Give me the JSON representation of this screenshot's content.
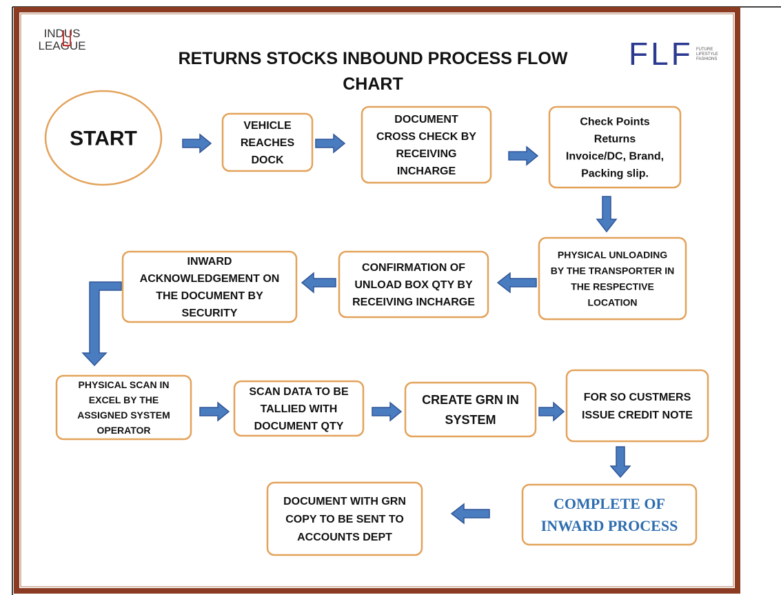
{
  "header": {
    "title_lines": [
      "RETURNS STOCKS INBOUND PROCESS FLOW",
      "CHART"
    ],
    "logo_left": [
      "INDUS",
      "LEAGUE"
    ],
    "logo_right": "FLF",
    "logo_right_small": [
      "FUTURE",
      "LIFESTYLE",
      "FASHIONS"
    ]
  },
  "nodes": [
    {
      "lines": [
        "START"
      ]
    },
    {
      "lines": [
        "VEHICLE",
        "REACHES",
        "DOCK"
      ]
    },
    {
      "lines": [
        "DOCUMENT",
        "CROSS CHECK BY",
        "RECEIVING",
        "INCHARGE"
      ]
    },
    {
      "lines": [
        "Check Points",
        "Returns",
        "Invoice/DC, Brand,",
        "Packing slip."
      ]
    },
    {
      "lines": [
        "PHYSICAL UNLOADING",
        "BY THE TRANSPORTER IN",
        "THE RESPECTIVE",
        "LOCATION"
      ]
    },
    {
      "lines": [
        "CONFIRMATION OF",
        "UNLOAD BOX QTY BY",
        "RECEIVING INCHARGE"
      ]
    },
    {
      "lines": [
        "INWARD",
        "ACKNOWLEDGEMENT ON",
        "THE DOCUMENT BY",
        "SECURITY"
      ]
    },
    {
      "lines": [
        "PHYSICAL SCAN IN",
        "EXCEL BY THE",
        "ASSIGNED SYSTEM",
        "OPERATOR"
      ]
    },
    {
      "lines": [
        "SCAN DATA TO BE",
        "TALLIED WITH",
        "DOCUMENT QTY"
      ]
    },
    {
      "lines": [
        "CREATE GRN IN",
        "SYSTEM"
      ]
    },
    {
      "lines": [
        "FOR  SO CUSTMERS",
        "ISSUE CREDIT NOTE"
      ]
    },
    {
      "lines": [
        "COMPLETE OF",
        "INWARD PROCESS"
      ]
    },
    {
      "lines": [
        "DOCUMENT WITH GRN",
        "COPY TO BE SENT TO",
        "ACCOUNTS DEPT"
      ]
    }
  ]
}
